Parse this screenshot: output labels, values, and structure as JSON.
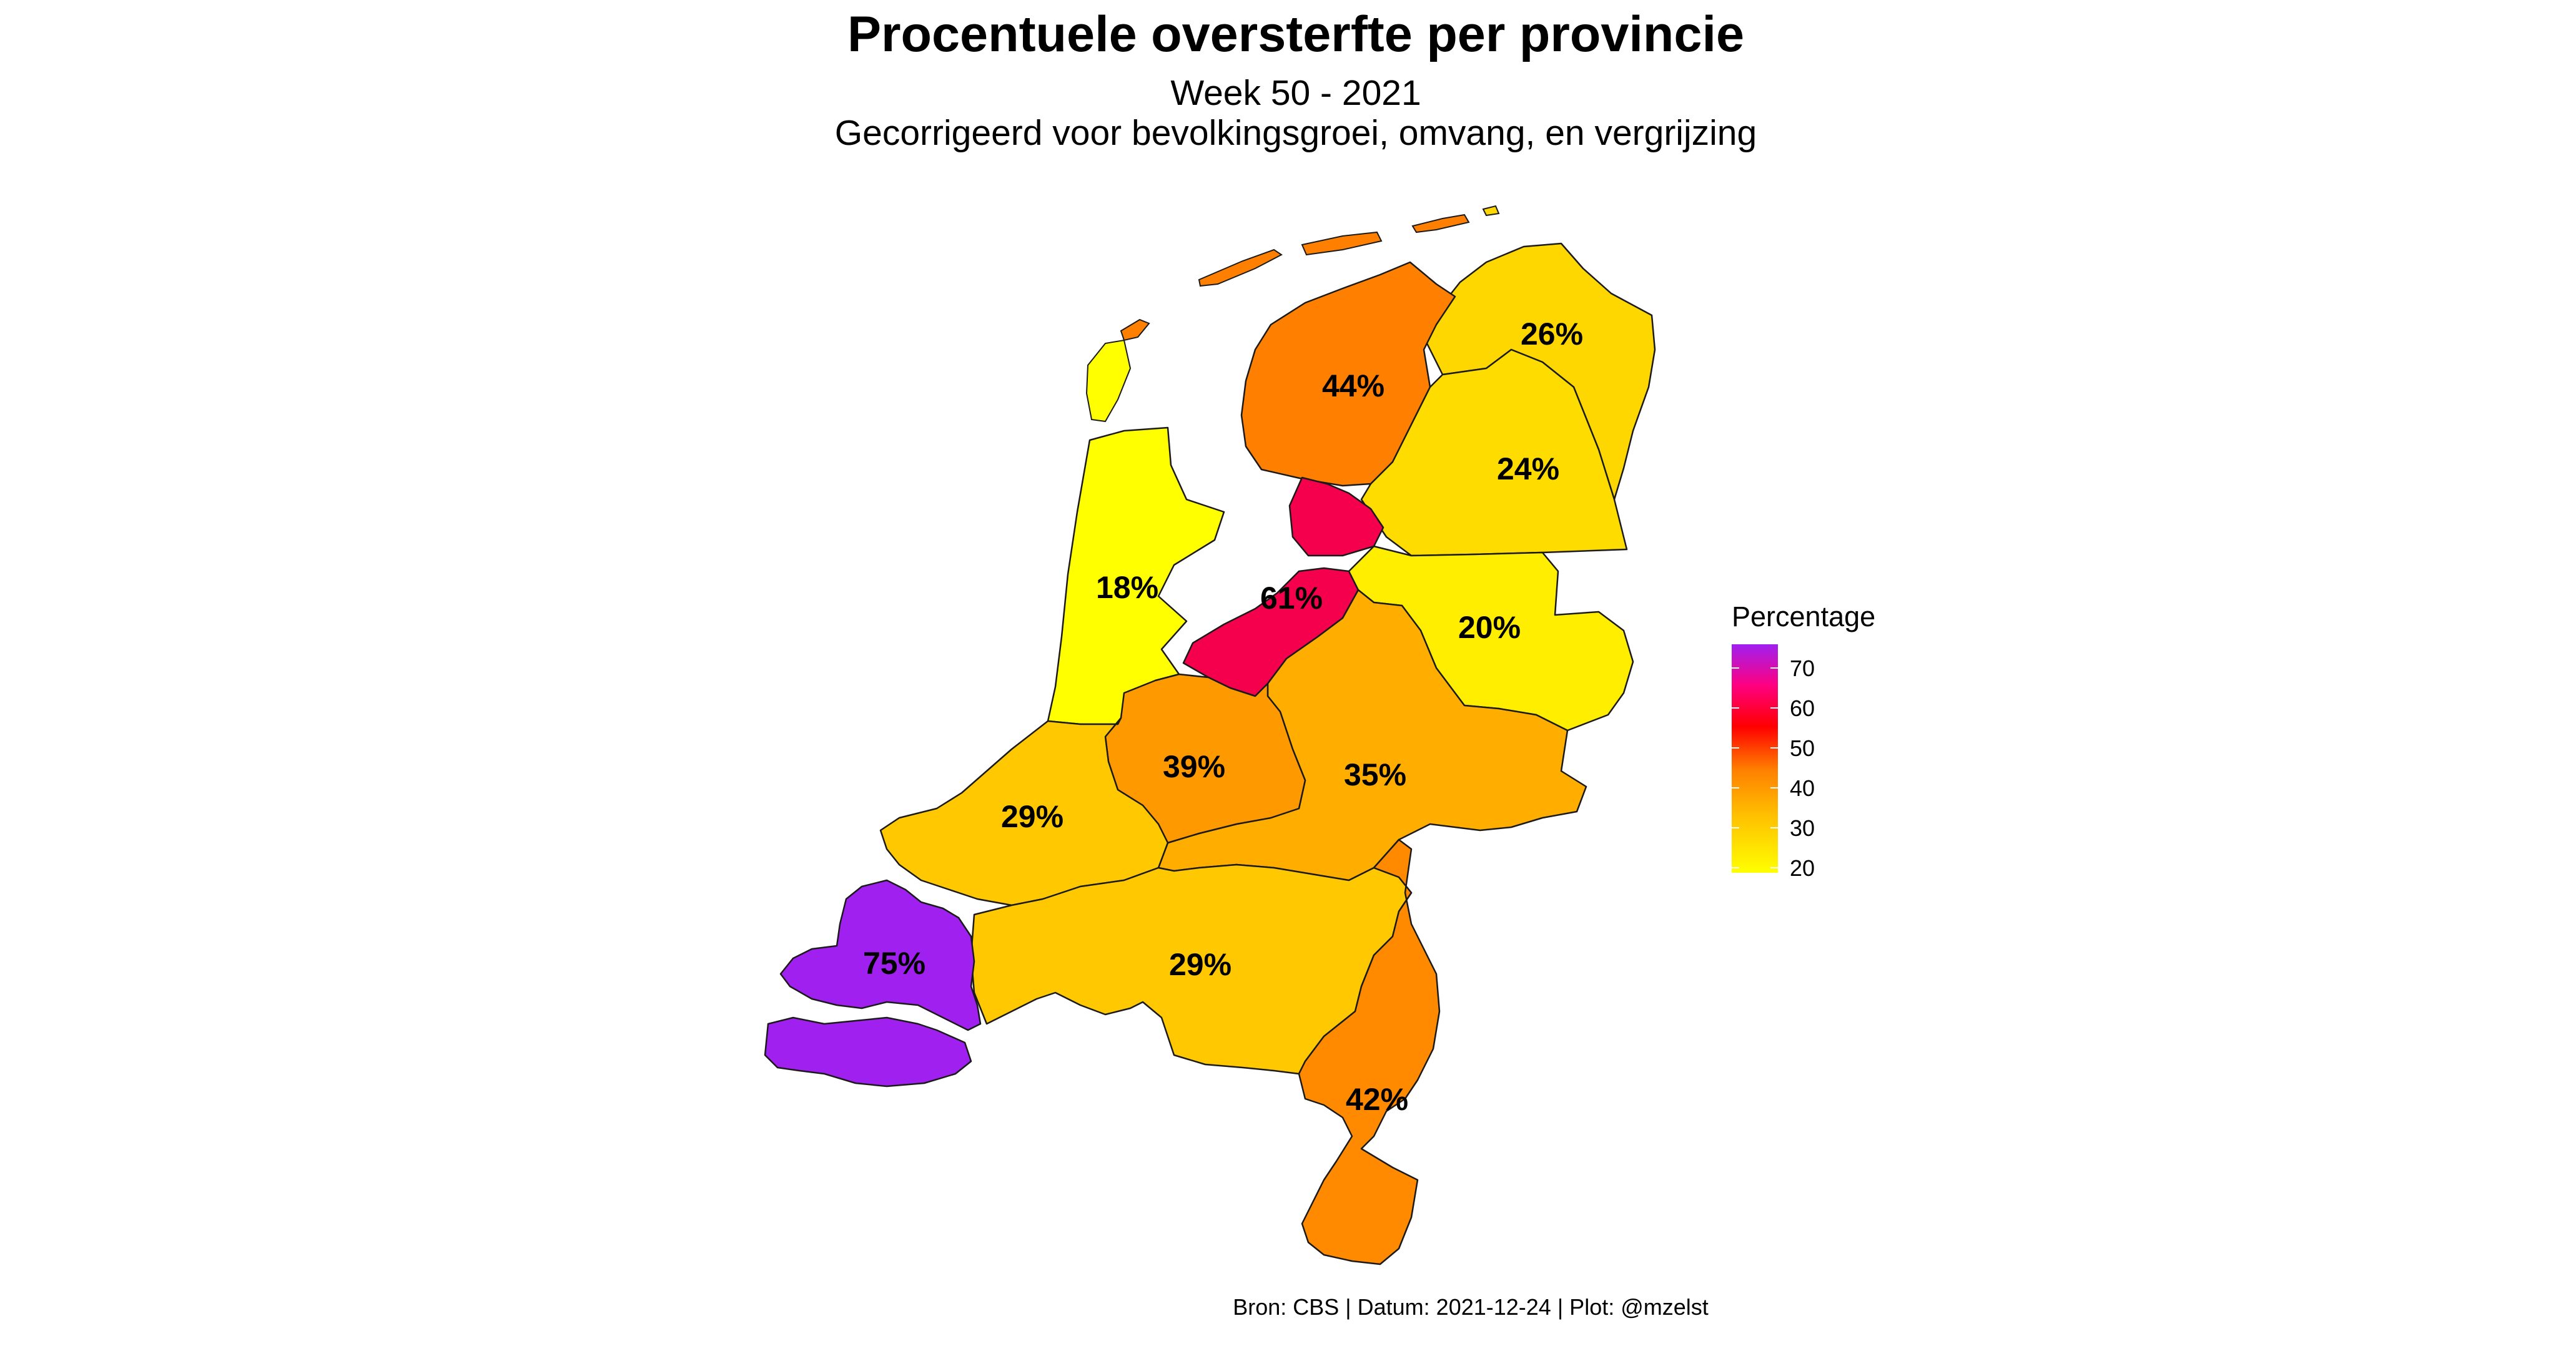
{
  "title": "Procentuele oversterfte per provincie",
  "subtitle_line1": "Week 50 - 2021",
  "subtitle_line2": "Gecorrigeerd voor bevolkingsgroei, omvang, en vergrijzing",
  "caption": "Bron: CBS | Datum: 2021-12-24 | Plot: @mzelst",
  "legend": {
    "title": "Percentage",
    "ticks": [
      "70",
      "60",
      "50",
      "40",
      "30",
      "20"
    ],
    "colors": [
      "#a020f0",
      "#ff0080",
      "#ff0000",
      "#ff8000",
      "#ffc000",
      "#ffff00"
    ]
  },
  "provinces": [
    {
      "id": "groningen",
      "label": "26%",
      "value": 26,
      "color": "#ffd700"
    },
    {
      "id": "friesland",
      "label": "44%",
      "value": 44,
      "color": "#ff8000"
    },
    {
      "id": "drenthe",
      "label": "24%",
      "value": 24,
      "color": "#ffdc00"
    },
    {
      "id": "noord-holland",
      "label": "18%",
      "value": 18,
      "color": "#ffff00"
    },
    {
      "id": "flevoland",
      "label": "61%",
      "value": 61,
      "color": "#f5004c"
    },
    {
      "id": "overijssel",
      "label": "20%",
      "value": 20,
      "color": "#ffee00"
    },
    {
      "id": "utrecht",
      "label": "39%",
      "value": 39,
      "color": "#ff9900"
    },
    {
      "id": "gelderland",
      "label": "35%",
      "value": 35,
      "color": "#ffae00"
    },
    {
      "id": "zuid-holland",
      "label": "29%",
      "value": 29,
      "color": "#ffc800"
    },
    {
      "id": "zeeland",
      "label": "75%",
      "value": 75,
      "color": "#a020f0"
    },
    {
      "id": "noord-brabant",
      "label": "29%",
      "value": 29,
      "color": "#ffc800"
    },
    {
      "id": "limburg",
      "label": "42%",
      "value": 42,
      "color": "#ff8a00"
    }
  ]
}
